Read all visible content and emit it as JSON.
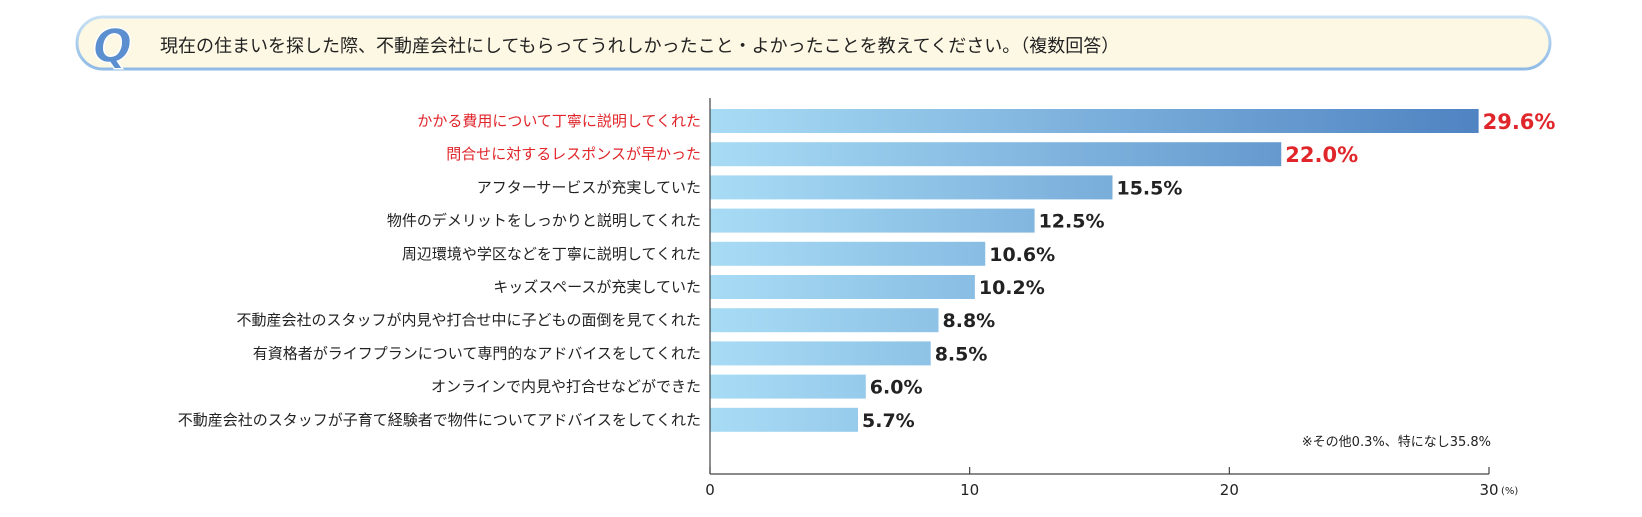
{
  "question": {
    "badge": "Q",
    "text": "現在の住まいを探した際、不動産会社にしてもらってうれしかったこと・よかったことを教えてください。（複数回答）"
  },
  "chart_data": {
    "type": "bar",
    "orientation": "horizontal",
    "title": "現在の住まいを探した際、不動産会社にしてもらってうれしかったこと・よかったことを教えてください。（複数回答）",
    "categories": [
      "かかる費用について丁寧に説明してくれた",
      "問合せに対するレスポンスが早かった",
      "アフターサービスが充実していた",
      "物件のデメリットをしっかりと説明してくれた",
      "周辺環境や学区などを丁寧に説明してくれた",
      "キッズスペースが充実していた",
      "不動産会社のスタッフが内見や打合せ中に子どもの面倒を見てくれた",
      "有資格者がライフプランについて専門的なアドバイスをしてくれた",
      "オンラインで内見や打合せなどができた",
      "不動産会社のスタッフが子育て経験者で物件についてアドバイスをしてくれた"
    ],
    "values": [
      29.6,
      22.0,
      15.5,
      12.5,
      10.6,
      10.2,
      8.8,
      8.5,
      6.0,
      5.7
    ],
    "value_labels": [
      "29.6%",
      "22.0%",
      "15.5%",
      "12.5%",
      "10.6%",
      "10.2%",
      "8.8%",
      "8.5%",
      "6.0%",
      "5.7%"
    ],
    "highlighted": [
      true,
      true,
      false,
      false,
      false,
      false,
      false,
      false,
      false,
      false
    ],
    "xlim": [
      0,
      30
    ],
    "xticks": [
      0,
      10,
      20,
      30
    ],
    "xtick_labels": [
      "0",
      "10",
      "20",
      "30"
    ],
    "x_unit": "(%)",
    "note": "※その他0.3%、特になし35.8%"
  },
  "colors": {
    "highlight_text": "#e0262b",
    "normal_text": "#222222",
    "bar_light": "#a8dcf5",
    "bar_dark": "#4f83c2",
    "badge_blue": "#5b8fcf",
    "banner_fill": "#fdf8e4",
    "banner_stroke": "#9ec4e8",
    "axis": "#444444"
  }
}
